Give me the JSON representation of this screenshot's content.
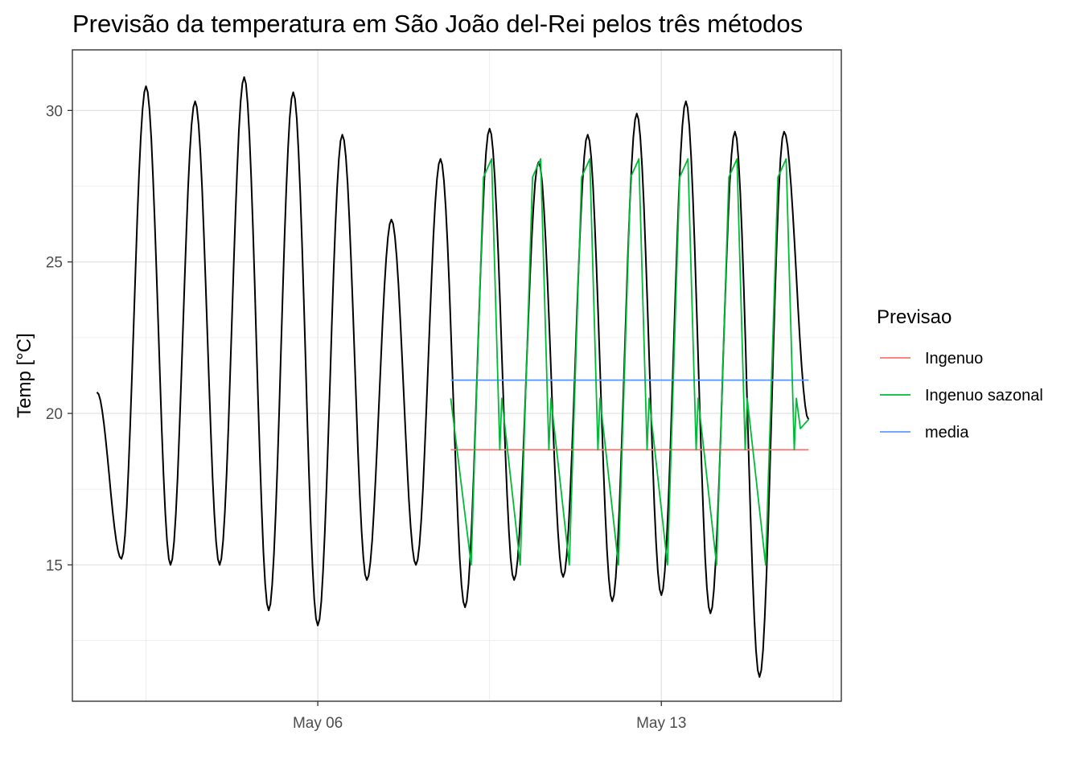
{
  "chart_data": {
    "type": "line",
    "title": "Previsão da temperatura em São João del-Rei pelos três métodos",
    "xlabel": "",
    "ylabel": "Temp [°C]",
    "x_type": "datetime",
    "xlim": [
      "2019-05-01T00:00",
      "2019-05-16T16:00"
    ],
    "ylim": [
      10.5,
      32.0
    ],
    "x_ticks": [
      {
        "value": "2019-05-06T00:00",
        "label": "May 06"
      },
      {
        "value": "2019-05-13T00:00",
        "label": "May 13"
      }
    ],
    "y_ticks": [
      15,
      20,
      25,
      30
    ],
    "grid": true,
    "legend": {
      "title": "Previsao",
      "position": "right",
      "entries": [
        {
          "label": "Ingenuo",
          "color": "#F8766D"
        },
        {
          "label": "Ingenuo sazonal",
          "color": "#00BA38"
        },
        {
          "label": "media",
          "color": "#619CFF"
        }
      ]
    },
    "observed": {
      "color": "#000000",
      "start": "2019-05-01T12:00",
      "step_hours": 12,
      "points": [
        {
          "x": "2019-05-01T12:00",
          "y": 20.7
        },
        {
          "x": "2019-05-02T00:00",
          "y": 15.2
        },
        {
          "x": "2019-05-02T12:00",
          "y": 30.8
        },
        {
          "x": "2019-05-03T00:00",
          "y": 15.0
        },
        {
          "x": "2019-05-03T12:00",
          "y": 30.3
        },
        {
          "x": "2019-05-04T00:00",
          "y": 15.0
        },
        {
          "x": "2019-05-04T12:00",
          "y": 31.1
        },
        {
          "x": "2019-05-05T00:00",
          "y": 13.5
        },
        {
          "x": "2019-05-05T12:00",
          "y": 30.6
        },
        {
          "x": "2019-05-06T00:00",
          "y": 13.0
        },
        {
          "x": "2019-05-06T12:00",
          "y": 29.2
        },
        {
          "x": "2019-05-07T00:00",
          "y": 14.5
        },
        {
          "x": "2019-05-07T12:00",
          "y": 26.4
        },
        {
          "x": "2019-05-08T00:00",
          "y": 15.0
        },
        {
          "x": "2019-05-08T12:00",
          "y": 28.4
        },
        {
          "x": "2019-05-09T00:00",
          "y": 13.6
        },
        {
          "x": "2019-05-09T12:00",
          "y": 29.4
        },
        {
          "x": "2019-05-10T00:00",
          "y": 14.5
        },
        {
          "x": "2019-05-10T12:00",
          "y": 28.3
        },
        {
          "x": "2019-05-11T00:00",
          "y": 14.6
        },
        {
          "x": "2019-05-11T12:00",
          "y": 29.2
        },
        {
          "x": "2019-05-12T00:00",
          "y": 13.8
        },
        {
          "x": "2019-05-12T12:00",
          "y": 29.9
        },
        {
          "x": "2019-05-13T00:00",
          "y": 14.0
        },
        {
          "x": "2019-05-13T12:00",
          "y": 30.3
        },
        {
          "x": "2019-05-14T00:00",
          "y": 13.4
        },
        {
          "x": "2019-05-14T12:00",
          "y": 29.3
        },
        {
          "x": "2019-05-15T00:00",
          "y": 11.3
        },
        {
          "x": "2019-05-15T12:00",
          "y": 29.3
        },
        {
          "x": "2019-05-16T00:00",
          "y": 19.8
        }
      ]
    },
    "forecasts": [
      {
        "name": "Ingenuo",
        "color": "#F8766D",
        "points": [
          {
            "x": "2019-05-08T17:00",
            "y": 18.8
          },
          {
            "x": "2019-05-16T00:00",
            "y": 18.8
          }
        ]
      },
      {
        "name": "media",
        "color": "#619CFF",
        "points": [
          {
            "x": "2019-05-08T17:00",
            "y": 21.1
          },
          {
            "x": "2019-05-16T00:00",
            "y": 21.1
          }
        ]
      },
      {
        "name": "Ingenuo sazonal",
        "color": "#00BA38",
        "points": [
          {
            "x": "2019-05-08T17:00",
            "y": 20.5
          },
          {
            "x": "2019-05-09T03:00",
            "y": 15.0
          },
          {
            "x": "2019-05-09T09:00",
            "y": 27.8
          },
          {
            "x": "2019-05-09T13:00",
            "y": 28.4
          },
          {
            "x": "2019-05-09T17:00",
            "y": 18.8
          },
          {
            "x": "2019-05-09T18:00",
            "y": 20.5
          },
          {
            "x": "2019-05-10T03:00",
            "y": 15.0
          },
          {
            "x": "2019-05-10T09:00",
            "y": 27.8
          },
          {
            "x": "2019-05-10T13:00",
            "y": 28.4
          },
          {
            "x": "2019-05-10T17:00",
            "y": 18.8
          },
          {
            "x": "2019-05-10T18:00",
            "y": 20.5
          },
          {
            "x": "2019-05-11T03:00",
            "y": 15.0
          },
          {
            "x": "2019-05-11T09:00",
            "y": 27.8
          },
          {
            "x": "2019-05-11T13:00",
            "y": 28.4
          },
          {
            "x": "2019-05-11T17:00",
            "y": 18.8
          },
          {
            "x": "2019-05-11T18:00",
            "y": 20.5
          },
          {
            "x": "2019-05-12T03:00",
            "y": 15.0
          },
          {
            "x": "2019-05-12T09:00",
            "y": 27.8
          },
          {
            "x": "2019-05-12T13:00",
            "y": 28.4
          },
          {
            "x": "2019-05-12T17:00",
            "y": 18.8
          },
          {
            "x": "2019-05-12T18:00",
            "y": 20.5
          },
          {
            "x": "2019-05-13T03:00",
            "y": 15.0
          },
          {
            "x": "2019-05-13T09:00",
            "y": 27.8
          },
          {
            "x": "2019-05-13T13:00",
            "y": 28.4
          },
          {
            "x": "2019-05-13T17:00",
            "y": 18.8
          },
          {
            "x": "2019-05-13T18:00",
            "y": 20.5
          },
          {
            "x": "2019-05-14T03:00",
            "y": 15.0
          },
          {
            "x": "2019-05-14T09:00",
            "y": 27.8
          },
          {
            "x": "2019-05-14T13:00",
            "y": 28.4
          },
          {
            "x": "2019-05-14T17:00",
            "y": 18.8
          },
          {
            "x": "2019-05-14T18:00",
            "y": 20.5
          },
          {
            "x": "2019-05-15T03:00",
            "y": 15.0
          },
          {
            "x": "2019-05-15T09:00",
            "y": 27.8
          },
          {
            "x": "2019-05-15T13:00",
            "y": 28.4
          },
          {
            "x": "2019-05-15T17:00",
            "y": 18.8
          },
          {
            "x": "2019-05-15T18:00",
            "y": 20.5
          },
          {
            "x": "2019-05-15T20:00",
            "y": 19.5
          },
          {
            "x": "2019-05-16T00:00",
            "y": 19.8
          }
        ]
      }
    ]
  }
}
